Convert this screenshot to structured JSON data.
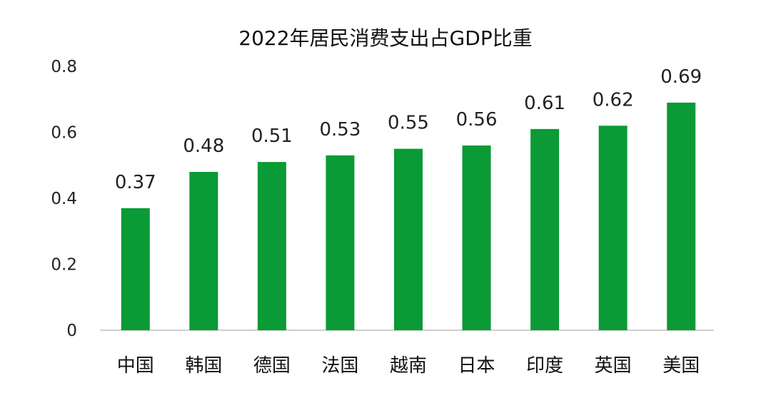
{
  "chart_data": {
    "type": "bar",
    "title": "2022年居民消费支出占GDP比重",
    "xlabel": "",
    "ylabel": "",
    "categories": [
      "中国",
      "韩国",
      "德国",
      "法国",
      "越南",
      "日本",
      "印度",
      "英国",
      "美国"
    ],
    "values": [
      0.37,
      0.48,
      0.51,
      0.53,
      0.55,
      0.56,
      0.61,
      0.62,
      0.69
    ],
    "data_labels": [
      "0.37",
      "0.48",
      "0.51",
      "0.53",
      "0.55",
      "0.56",
      "0.61",
      "0.62",
      "0.69"
    ],
    "ylim": [
      0,
      0.8
    ],
    "yticks": [
      0,
      0.2,
      0.4,
      0.6,
      0.8
    ],
    "ytick_labels": [
      "0",
      "0.2",
      "0.4",
      "0.6",
      "0.8"
    ],
    "grid": false,
    "legend": "none",
    "colors": {
      "bar": "#0A9A36",
      "axis": "#BFBFBF",
      "text": "#222222"
    }
  }
}
